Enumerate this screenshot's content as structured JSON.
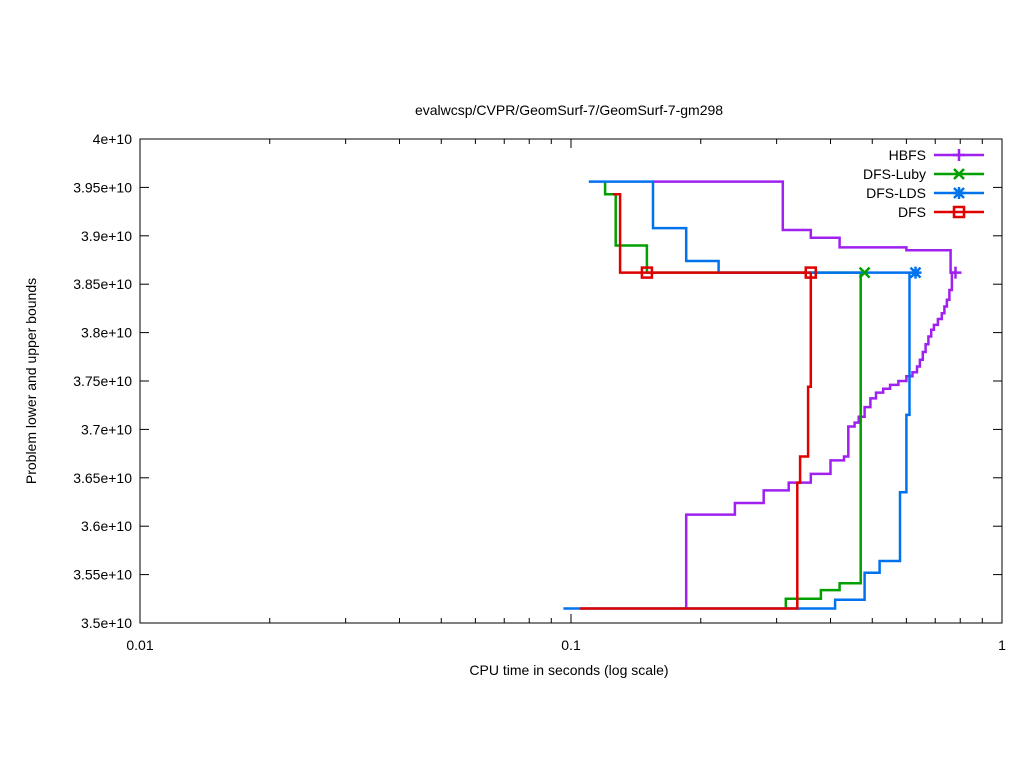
{
  "chart_data": {
    "type": "line",
    "title": "evalwcsp/CVPR/GeomSurf-7/GeomSurf-7-gm298",
    "xlabel": "CPU time in seconds (log scale)",
    "ylabel": "Problem lower and upper bounds",
    "xscale": "log",
    "xlim": [
      0.01,
      1
    ],
    "ylim": [
      35000000000,
      40000000000
    ],
    "x_ticks": [
      0.01,
      0.1,
      1
    ],
    "x_tick_labels": [
      "0.01",
      "0.1",
      "1"
    ],
    "y_ticks": [
      35000000000,
      35500000000,
      36000000000,
      36500000000,
      37000000000,
      37500000000,
      38000000000,
      38500000000,
      39000000000,
      39500000000,
      40000000000
    ],
    "y_tick_labels": [
      "3.5e+10",
      "3.55e+10",
      "3.6e+10",
      "3.65e+10",
      "3.7e+10",
      "3.75e+10",
      "3.8e+10",
      "3.85e+10",
      "3.9e+10",
      "3.95e+10",
      "4e+10"
    ],
    "grid": false,
    "legend_position": "top-right",
    "series": [
      {
        "name": "HBFS",
        "color": "#a020f0",
        "marker": "plus",
        "end_marker": [
          0.78,
          38620000000
        ],
        "upper": [
          [
            0.155,
            39560000000
          ],
          [
            0.31,
            39560000000
          ],
          [
            0.31,
            39060000000
          ],
          [
            0.36,
            39060000000
          ],
          [
            0.36,
            38980000000
          ],
          [
            0.42,
            38980000000
          ],
          [
            0.42,
            38880000000
          ],
          [
            0.6,
            38880000000
          ],
          [
            0.6,
            38850000000
          ],
          [
            0.76,
            38850000000
          ],
          [
            0.76,
            38620000000
          ],
          [
            0.78,
            38620000000
          ]
        ],
        "lower": [
          [
            0.185,
            35150000000
          ],
          [
            0.185,
            36120000000
          ],
          [
            0.24,
            36120000000
          ],
          [
            0.24,
            36240000000
          ],
          [
            0.28,
            36240000000
          ],
          [
            0.28,
            36370000000
          ],
          [
            0.32,
            36370000000
          ],
          [
            0.32,
            36450000000
          ],
          [
            0.36,
            36450000000
          ],
          [
            0.36,
            36540000000
          ],
          [
            0.4,
            36540000000
          ],
          [
            0.4,
            36680000000
          ],
          [
            0.43,
            36680000000
          ],
          [
            0.43,
            36720000000
          ],
          [
            0.44,
            36720000000
          ],
          [
            0.44,
            37030000000
          ],
          [
            0.455,
            37030000000
          ],
          [
            0.455,
            37070000000
          ],
          [
            0.465,
            37070000000
          ],
          [
            0.465,
            37130000000
          ],
          [
            0.48,
            37130000000
          ],
          [
            0.48,
            37230000000
          ],
          [
            0.495,
            37230000000
          ],
          [
            0.495,
            37320000000
          ],
          [
            0.51,
            37320000000
          ],
          [
            0.51,
            37380000000
          ],
          [
            0.53,
            37380000000
          ],
          [
            0.53,
            37420000000
          ],
          [
            0.55,
            37420000000
          ],
          [
            0.55,
            37460000000
          ],
          [
            0.575,
            37460000000
          ],
          [
            0.575,
            37500000000
          ],
          [
            0.6,
            37500000000
          ],
          [
            0.6,
            37550000000
          ],
          [
            0.62,
            37550000000
          ],
          [
            0.62,
            37590000000
          ],
          [
            0.635,
            37590000000
          ],
          [
            0.635,
            37650000000
          ],
          [
            0.645,
            37650000000
          ],
          [
            0.645,
            37720000000
          ],
          [
            0.655,
            37720000000
          ],
          [
            0.655,
            37800000000
          ],
          [
            0.665,
            37800000000
          ],
          [
            0.665,
            37880000000
          ],
          [
            0.675,
            37880000000
          ],
          [
            0.675,
            37960000000
          ],
          [
            0.685,
            37960000000
          ],
          [
            0.685,
            38030000000
          ],
          [
            0.695,
            38030000000
          ],
          [
            0.695,
            38080000000
          ],
          [
            0.71,
            38080000000
          ],
          [
            0.71,
            38140000000
          ],
          [
            0.725,
            38140000000
          ],
          [
            0.725,
            38200000000
          ],
          [
            0.735,
            38200000000
          ],
          [
            0.735,
            38270000000
          ],
          [
            0.745,
            38270000000
          ],
          [
            0.745,
            38340000000
          ],
          [
            0.755,
            38340000000
          ],
          [
            0.755,
            38440000000
          ],
          [
            0.765,
            38440000000
          ],
          [
            0.765,
            38620000000
          ]
        ]
      },
      {
        "name": "DFS-Luby",
        "color": "#00a000",
        "marker": "x",
        "end_marker": [
          0.48,
          38620000000
        ],
        "upper": [
          [
            0.12,
            39560000000
          ],
          [
            0.12,
            39430000000
          ],
          [
            0.127,
            39430000000
          ],
          [
            0.127,
            38900000000
          ],
          [
            0.15,
            38900000000
          ],
          [
            0.15,
            38620000000
          ],
          [
            0.48,
            38620000000
          ]
        ],
        "lower": [
          [
            0.315,
            35150000000
          ],
          [
            0.315,
            35250000000
          ],
          [
            0.38,
            35250000000
          ],
          [
            0.38,
            35340000000
          ],
          [
            0.42,
            35340000000
          ],
          [
            0.42,
            35410000000
          ],
          [
            0.47,
            35410000000
          ],
          [
            0.47,
            38620000000
          ]
        ]
      },
      {
        "name": "DFS-LDS",
        "color": "#0072ee",
        "marker": "star",
        "end_marker": [
          0.63,
          38620000000
        ],
        "upper": [
          [
            0.11,
            39560000000
          ],
          [
            0.155,
            39560000000
          ],
          [
            0.155,
            39080000000
          ],
          [
            0.185,
            39080000000
          ],
          [
            0.185,
            38740000000
          ],
          [
            0.22,
            38740000000
          ],
          [
            0.22,
            38620000000
          ],
          [
            0.63,
            38620000000
          ]
        ],
        "lower": [
          [
            0.096,
            35150000000
          ],
          [
            0.41,
            35150000000
          ],
          [
            0.41,
            35240000000
          ],
          [
            0.48,
            35240000000
          ],
          [
            0.48,
            35520000000
          ],
          [
            0.52,
            35520000000
          ],
          [
            0.52,
            35640000000
          ],
          [
            0.58,
            35640000000
          ],
          [
            0.58,
            36350000000
          ],
          [
            0.6,
            36350000000
          ],
          [
            0.6,
            37150000000
          ],
          [
            0.61,
            37150000000
          ],
          [
            0.61,
            38620000000
          ]
        ]
      },
      {
        "name": "DFS",
        "color": "#e00000",
        "marker": "square",
        "end_marker": [
          0.36,
          38620000000
        ],
        "upper": [
          [
            0.125,
            39430000000
          ],
          [
            0.13,
            39430000000
          ],
          [
            0.13,
            38620000000
          ],
          [
            0.15,
            38620000000
          ],
          [
            0.36,
            38620000000
          ]
        ],
        "lower": [
          [
            0.105,
            35150000000
          ],
          [
            0.335,
            35150000000
          ],
          [
            0.335,
            36450000000
          ],
          [
            0.34,
            36450000000
          ],
          [
            0.34,
            36720000000
          ],
          [
            0.355,
            36720000000
          ],
          [
            0.355,
            37440000000
          ],
          [
            0.36,
            37440000000
          ],
          [
            0.36,
            38620000000
          ]
        ],
        "extra_markers": [
          [
            0.15,
            38620000000
          ]
        ]
      }
    ]
  },
  "extra_markers_note": ""
}
